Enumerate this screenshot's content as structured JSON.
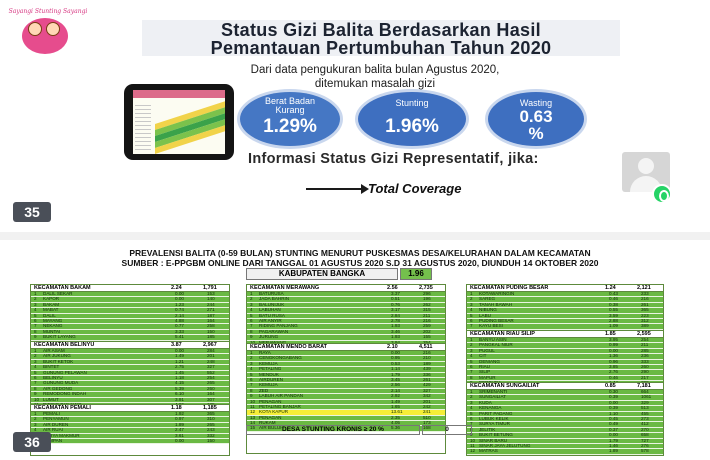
{
  "slide_top": {
    "logo_text": "Sayangi Stunting Sayangi",
    "title_line1": "Status Gizi Balita Berdasarkan Hasil",
    "title_line2": "Pemantauan Pertumbuhan  Tahun 2020",
    "subtitle_line1": "Dari data pengukuran balita bulan  Agustus  2020,",
    "subtitle_line2": "ditemukan masalah gizi",
    "stats": [
      {
        "label_line1": "Berat Badan",
        "label_line2": "Kurang",
        "value": "1.29%"
      },
      {
        "label_line1": "Stunting",
        "label_line2": "",
        "value": "1.96%"
      },
      {
        "label_line1": "Wasting",
        "label_line2": "",
        "value_line1": "0.63",
        "value_line2": "%"
      }
    ],
    "info_text": "Informasi Status Gizi Representatif, jika:",
    "coverage_text": "Total Coverage",
    "page_number": "35"
  },
  "slide_bottom": {
    "title": "PREVALENSI BALITA  (0-59 BULAN) STUNTING MENURUT PUSKESMAS DESA/KELURAHAN DALAM KECAMATAN",
    "source": "SUMBER : E-PPGBM ONLINE DARI TANGGAL 01 AGUSTUS  2020 S.D 31 AGUSTUS  2020, DIUNDUH 14 OKTOBER  2020",
    "kabupaten_label": "KABUPATEN BANGKA",
    "kabupaten_value": "1.96",
    "kronis_label": "DESA STUNTING KRONIS ≥ 20 %",
    "kronis_value": "0",
    "page_number": "36",
    "tables": [
      {
        "header": "KECAMATAN BAKAM",
        "prev": "2.24",
        "n": "1,791",
        "rows": [
          [
            "1",
            "DALIL SEKAR",
            "0.00",
            "153"
          ],
          [
            "2",
            "KAPOR",
            "0.00",
            "140"
          ],
          [
            "3",
            "BAKAM",
            "1.23",
            "244"
          ],
          [
            "4",
            "MABAT",
            "0.74",
            "271"
          ],
          [
            "5",
            "DALIL",
            "2.14",
            "187"
          ],
          [
            "6",
            "MAYANG",
            "4.88",
            "164"
          ],
          [
            "7",
            "NEKANG",
            "0.77",
            "258"
          ],
          [
            "8",
            "MUNTAI",
            "3.33",
            "150"
          ],
          [
            "9",
            "BUKIT LAYANG",
            "5.41",
            "185"
          ]
        ]
      },
      {
        "header": "KECAMATAN BELINYU",
        "prev": "3.87",
        "n": "2,967",
        "rows": [
          [
            "1",
            "AIR ASAM",
            "0.00",
            "284"
          ],
          [
            "2",
            "AIR JUKUNG",
            "1.49",
            "201"
          ],
          [
            "3",
            "BUKIT KETOK",
            "1.21",
            "248"
          ],
          [
            "4",
            "BINTET",
            "2.75",
            "327"
          ],
          [
            "5",
            "GUNUNG PELAWAN",
            "1.45",
            "552"
          ],
          [
            "6",
            "BELINYU",
            "1.18",
            "254"
          ],
          [
            "7",
            "GUNUNG MUDA",
            "4.15",
            "265"
          ],
          [
            "8",
            "AIR GEDONG",
            "5.39",
            "260"
          ],
          [
            "9",
            "REMODONG INDAH",
            "6.10",
            "164"
          ],
          [
            "10",
            "LUMUT",
            "3.91",
            "307"
          ],
          [
            "11",
            "RIDING PANJANG",
            "4.86",
            "185"
          ],
          [
            "12",
            "KUTO PANJI",
            "7.27",
            "110"
          ]
        ]
      },
      {
        "header": "KECAMATAN PEMALI",
        "prev": "1.18",
        "n": "1,185",
        "rows": [
          [
            "1",
            "PEMALI",
            "1.92",
            "365"
          ],
          [
            "2",
            "PENYAMUN",
            "0.97",
            "310"
          ],
          [
            "3",
            "AIR DUREN",
            "1.89",
            "265"
          ],
          [
            "4",
            "AIR RUAI",
            "2.47",
            "243"
          ],
          [
            "5",
            "KARYA MAKMUR",
            "3.61",
            "332"
          ],
          [
            "6",
            "SEMPAN",
            "0.00",
            "150"
          ]
        ]
      },
      {
        "header": "KECAMATAN MERAWANG",
        "prev": "2.56",
        "n": "2,735",
        "rows": [
          [
            "1",
            "BATURUSA",
            "3.37",
            "296"
          ],
          [
            "2",
            "JADA BAHRIN",
            "0.51",
            "196"
          ],
          [
            "3",
            "BALUNIJUK",
            "0.76",
            "262"
          ],
          [
            "4",
            "LABUHAN",
            "3.17",
            "315"
          ],
          [
            "5",
            "BATU RUSA",
            "2.84",
            "211"
          ],
          [
            "6",
            "AIR ANYIR",
            "2.78",
            "216"
          ],
          [
            "7",
            "RIDING PANJANG",
            "1.93",
            "259"
          ],
          [
            "8",
            "PAGARAWAN",
            "3.46",
            "202"
          ],
          [
            "9",
            "JURUNG",
            "1.93",
            "155"
          ],
          [
            "10",
            "MERAWANG",
            "3.94",
            "254"
          ]
        ]
      },
      {
        "header": "KECAMATAN MENDO BARAT",
        "prev": "2.10",
        "n": "4,511",
        "rows": [
          [
            "1",
            "RAYA",
            "0.00",
            "216"
          ],
          [
            "2",
            "CENGKONGABANG",
            "0.95",
            "210"
          ],
          [
            "3",
            "KEMUJA",
            "0.53",
            "189"
          ],
          [
            "4",
            "PETALING",
            "1.14",
            "439"
          ],
          [
            "5",
            "MENDUK",
            "1.79",
            "336"
          ],
          [
            "6",
            "AIRDUREN",
            "3.45",
            "261"
          ],
          [
            "7",
            "KEMUJA",
            "2.56",
            "429"
          ],
          [
            "8",
            "ZED",
            "2.14",
            "327"
          ],
          [
            "9",
            "LABUH AIR PANDAN",
            "2.92",
            "342"
          ],
          [
            "10",
            "PENAGAN",
            "1.49",
            "201"
          ],
          [
            "11",
            "PETALING BANJAR",
            "1.65",
            "242"
          ],
          [
            "12",
            "KOTA KAPUR",
            "13.61",
            "241"
          ],
          [
            "13",
            "PENAGAN",
            "2.35",
            "510"
          ],
          [
            "14",
            "RUKAM",
            "4.05",
            "173"
          ],
          [
            "15",
            "AIR BULUH",
            "5.36",
            "168"
          ]
        ]
      },
      {
        "header": "KECAMATAN PUDING BESAR",
        "prev": "1.24",
        "n": "2,121",
        "rows": [
          [
            "1",
            "KOTAWARINGIN",
            "0.43",
            "233"
          ],
          [
            "2",
            "SAREG",
            "0.46",
            "216"
          ],
          [
            "3",
            "TANAH BAWAH",
            "0.38",
            "261"
          ],
          [
            "4",
            "NIBUNG",
            "0.55",
            "365"
          ],
          [
            "5",
            "LABU",
            "3.59",
            "223"
          ],
          [
            "6",
            "PUDING BESAR",
            "2.88",
            "312"
          ],
          [
            "7",
            "KAYU BESI",
            "1.09",
            "389"
          ]
        ]
      },
      {
        "header": "KECAMATAN RIAU SILIP",
        "prev": "1.85",
        "n": "2,595",
        "rows": [
          [
            "1",
            "BANYU ASIN",
            "3.95",
            "254"
          ],
          [
            "2",
            "PANGKAL NIUR",
            "0.99",
            "211"
          ],
          [
            "3",
            "PUGUL",
            "0.00",
            "285"
          ],
          [
            "4",
            "CIT",
            "1.36",
            "236"
          ],
          [
            "5",
            "DENIANG",
            "0.96",
            "333"
          ],
          [
            "6",
            "RIAU",
            "3.85",
            "260"
          ],
          [
            "7",
            "SILIP",
            "2.76",
            "290"
          ],
          [
            "8",
            "MAPUR",
            "0.46",
            "217"
          ],
          [
            "9",
            "BERBURA",
            "1.44",
            "209"
          ]
        ]
      },
      {
        "header": "KECAMATAN SUNGAILIAT",
        "prev": "0.85",
        "n": "7,181",
        "rows": [
          [
            "1",
            "SRIMENANTI",
            "0.30",
            "664"
          ],
          [
            "2",
            "SUNGAILIAT",
            "0.39",
            "1061"
          ],
          [
            "3",
            "KUDA",
            "0.00",
            "329"
          ],
          [
            "4",
            "KENANGA",
            "0.39",
            "513"
          ],
          [
            "5",
            "PARIT PADANG",
            "1.10",
            "455"
          ],
          [
            "6",
            "LUBUK KELIK",
            "0.45",
            "273"
          ],
          [
            "7",
            "SURYA TIMUR",
            "0.49",
            "412"
          ],
          [
            "8",
            "JELITIK",
            "0.37",
            "270"
          ],
          [
            "9",
            "BUKIT BETUNG",
            "0.00",
            "658"
          ],
          [
            "10",
            "SINAR BARU",
            "1.79",
            "727"
          ],
          [
            "11",
            "SINAR JAYA JELUTUNG",
            "1.46",
            "276"
          ],
          [
            "12",
            "MATRAS",
            "1.89",
            "578"
          ]
        ]
      }
    ]
  }
}
